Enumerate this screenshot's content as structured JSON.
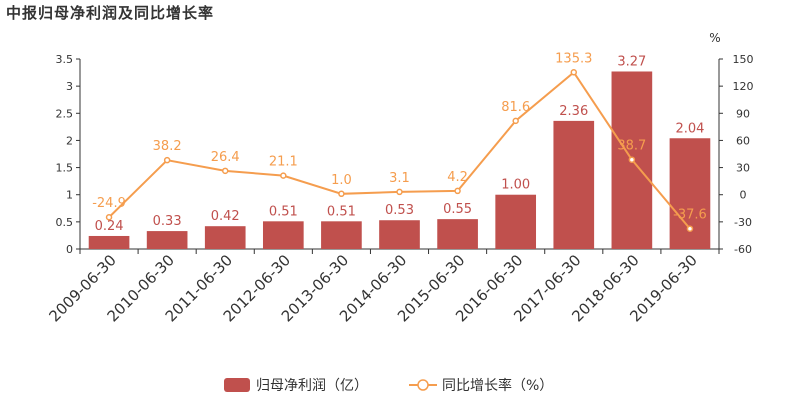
{
  "colors": {
    "bar": "#c0504d",
    "line": "#f59d4e",
    "axis": "#333333"
  },
  "chart_data": {
    "type": "bar",
    "title": "中报归母净利润及同比增长率",
    "right_axis_unit": "%",
    "categories": [
      "2009-06-30",
      "2010-06-30",
      "2011-06-30",
      "2012-06-30",
      "2013-06-30",
      "2014-06-30",
      "2015-06-30",
      "2016-06-30",
      "2017-06-30",
      "2018-06-30",
      "2019-06-30"
    ],
    "series": [
      {
        "name": "归母净利润（亿）",
        "type": "bar",
        "axis": "left",
        "values": [
          0.24,
          0.33,
          0.42,
          0.51,
          0.51,
          0.53,
          0.55,
          1.0,
          2.36,
          3.27,
          2.04
        ],
        "labels": [
          "0.24",
          "0.33",
          "0.42",
          "0.51",
          "0.51",
          "0.53",
          "0.55",
          "1.00",
          "2.36",
          "3.27",
          "2.04"
        ]
      },
      {
        "name": "同比增长率（%）",
        "type": "line",
        "axis": "right",
        "values": [
          -24.9,
          38.2,
          26.4,
          21.1,
          1.0,
          3.1,
          4.2,
          81.6,
          135.3,
          38.7,
          -37.6
        ],
        "labels": [
          "-24.9",
          "38.2",
          "26.4",
          "21.1",
          "1.0",
          "3.1",
          "4.2",
          "81.6",
          "135.3",
          "38.7",
          "-37.6"
        ]
      }
    ],
    "y_left": {
      "min": 0,
      "max": 3.5,
      "ticks": [
        "0",
        "0.5",
        "1",
        "1.5",
        "2",
        "2.5",
        "3",
        "3.5"
      ]
    },
    "y_right": {
      "min": -60,
      "max": 150,
      "ticks": [
        "-60",
        "-30",
        "0",
        "30",
        "60",
        "90",
        "120",
        "150"
      ]
    },
    "legend_position": "bottom"
  }
}
